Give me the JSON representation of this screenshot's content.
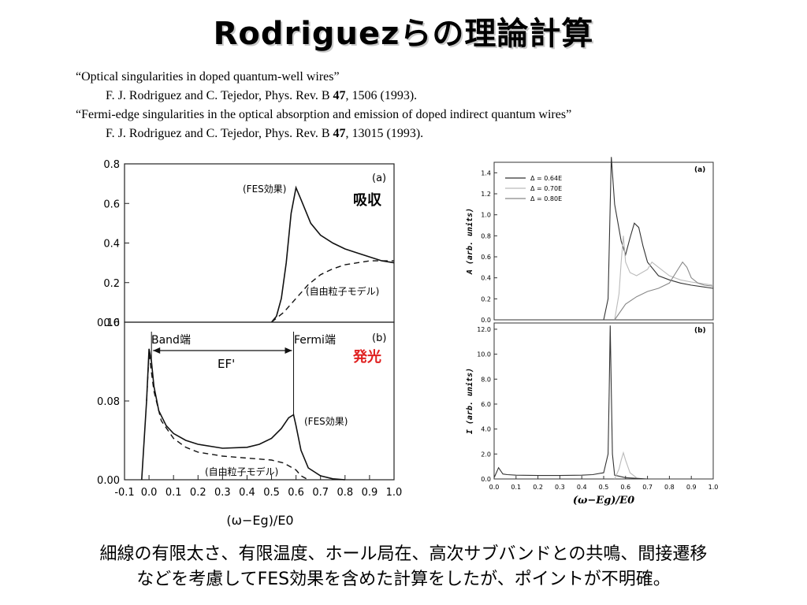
{
  "slide": {
    "title": "Rodriguezらの理論計算",
    "references": [
      {
        "title": "“Optical singularities in doped quantum-well wires”",
        "authors": "F. J. Rodriguez and C. Tejedor, Phys. Rev. B ",
        "volume": "47",
        "pages": ", 1506 (1993)."
      },
      {
        "title": "“Fermi-edge singularities in the optical absorption and emission of doped indirect quantum wires”",
        "authors": "F. J. Rodriguez and C. Tejedor, Phys. Rev. B ",
        "volume": "47",
        "pages": ", 13015 (1993)."
      }
    ],
    "caption": {
      "line1": "細線の有限太さ、有限温度、ホール局在、高次サブバンドとの共鳴、間接遷移",
      "line2": "などを考慮してFES効果を含めた計算をしたが、ポイントが不明確。"
    }
  },
  "chart_data": [
    {
      "type": "line",
      "panel": "(a)",
      "annotations": [
        "(FES効果)",
        "吸収",
        "(自由粒子モデル)"
      ],
      "ylim": [
        0.0,
        0.8
      ],
      "yticks": [
        "0.0",
        "0.2",
        "0.4",
        "0.6",
        "0.8"
      ],
      "xlim": [
        -0.1,
        1.0
      ],
      "series": [
        {
          "style": "solid",
          "x": [
            0.5,
            0.52,
            0.54,
            0.56,
            0.58,
            0.6,
            0.62,
            0.66,
            0.7,
            0.75,
            0.8,
            0.85,
            0.9,
            0.95,
            1.0
          ],
          "y": [
            0.0,
            0.03,
            0.12,
            0.3,
            0.55,
            0.68,
            0.62,
            0.5,
            0.44,
            0.4,
            0.37,
            0.35,
            0.33,
            0.31,
            0.3
          ]
        },
        {
          "style": "dashed",
          "x": [
            0.5,
            0.55,
            0.6,
            0.65,
            0.7,
            0.75,
            0.8,
            0.85,
            0.9,
            0.95,
            1.0
          ],
          "y": [
            0.0,
            0.05,
            0.12,
            0.19,
            0.24,
            0.27,
            0.29,
            0.3,
            0.31,
            0.31,
            0.31
          ]
        }
      ]
    },
    {
      "type": "line",
      "panel": "(b)",
      "annotations": [
        "Band端",
        "Fermi端",
        "EF'",
        "発光",
        "(FES効果)",
        "(自由粒子モデル)"
      ],
      "ylim": [
        0.0,
        0.16
      ],
      "yticks": [
        "0.00",
        "0.08",
        "0.16"
      ],
      "xlim": [
        -0.1,
        1.0
      ],
      "xticks": [
        "-0.1",
        "0.0",
        "0.1",
        "0.2",
        "0.3",
        "0.4",
        "0.5",
        "0.6",
        "0.7",
        "0.8",
        "0.9",
        "1.0"
      ],
      "xlabel": "(ω−Eg)/E0",
      "series": [
        {
          "style": "solid",
          "x": [
            -0.03,
            -0.01,
            0.0,
            0.01,
            0.02,
            0.04,
            0.07,
            0.1,
            0.15,
            0.2,
            0.3,
            0.4,
            0.45,
            0.5,
            0.54,
            0.57,
            0.59,
            0.6,
            0.62,
            0.65,
            0.7,
            0.75,
            0.8
          ],
          "y": [
            0.0,
            0.08,
            0.133,
            0.12,
            0.095,
            0.07,
            0.055,
            0.047,
            0.04,
            0.036,
            0.032,
            0.033,
            0.036,
            0.042,
            0.052,
            0.063,
            0.066,
            0.055,
            0.03,
            0.012,
            0.004,
            0.001,
            0.0
          ]
        },
        {
          "style": "dashed",
          "x": [
            -0.01,
            0.0,
            0.02,
            0.05,
            0.1,
            0.15,
            0.2,
            0.3,
            0.4,
            0.5,
            0.55,
            0.6,
            0.62,
            0.65
          ],
          "y": [
            0.08,
            0.128,
            0.09,
            0.06,
            0.042,
            0.033,
            0.028,
            0.024,
            0.022,
            0.02,
            0.017,
            0.01,
            0.004,
            0.0
          ]
        }
      ]
    },
    {
      "type": "line",
      "panel": "(a)",
      "ylabel": "A (arb. units)",
      "ylim": [
        0.0,
        1.5
      ],
      "yticks": [
        "0.0",
        "0.2",
        "0.4",
        "0.6",
        "0.8",
        "1.0",
        "1.2",
        "1.4"
      ],
      "xlim": [
        0.0,
        1.0
      ],
      "series": [
        {
          "name": "Δ = 0.64E",
          "x": [
            0.5,
            0.52,
            0.53,
            0.535,
            0.55,
            0.58,
            0.6,
            0.62,
            0.64,
            0.66,
            0.68,
            0.7,
            0.75,
            0.8,
            0.85,
            0.9,
            1.0
          ],
          "y": [
            0.0,
            0.2,
            1.1,
            1.55,
            1.1,
            0.75,
            0.62,
            0.78,
            0.92,
            0.88,
            0.7,
            0.55,
            0.42,
            0.38,
            0.35,
            0.33,
            0.3
          ]
        },
        {
          "name": "Δ = 0.70E",
          "x": [
            0.55,
            0.57,
            0.58,
            0.59,
            0.6,
            0.62,
            0.65,
            0.7,
            0.72,
            0.75,
            0.8,
            0.85,
            0.9,
            1.0
          ],
          "y": [
            0.0,
            0.25,
            0.55,
            0.8,
            0.55,
            0.45,
            0.42,
            0.48,
            0.55,
            0.5,
            0.42,
            0.38,
            0.36,
            0.33
          ]
        },
        {
          "name": "Δ = 0.80E",
          "x": [
            0.55,
            0.6,
            0.65,
            0.7,
            0.75,
            0.8,
            0.83,
            0.86,
            0.88,
            0.9,
            0.93,
            0.96,
            1.0
          ],
          "y": [
            0.0,
            0.15,
            0.22,
            0.27,
            0.3,
            0.35,
            0.45,
            0.55,
            0.5,
            0.4,
            0.35,
            0.33,
            0.32
          ]
        }
      ],
      "legend_position": "top-left"
    },
    {
      "type": "line",
      "panel": "(b)",
      "ylabel": "I (arb. units)",
      "xlabel": "(ω−Eg)/E0",
      "ylim": [
        0.0,
        12.5
      ],
      "yticks": [
        "0.0",
        "2.0",
        "4.0",
        "6.0",
        "8.0",
        "10.0",
        "12.0"
      ],
      "xlim": [
        0.0,
        1.0
      ],
      "xticks": [
        "0.0",
        "0.1",
        "0.2",
        "0.3",
        "0.4",
        "0.5",
        "0.6",
        "0.7",
        "0.8",
        "0.9",
        "1.0"
      ],
      "series": [
        {
          "x": [
            0.0,
            0.01,
            0.02,
            0.04,
            0.06,
            0.1,
            0.2,
            0.3,
            0.4,
            0.45,
            0.5,
            0.52,
            0.525,
            0.53,
            0.535,
            0.54,
            0.55,
            0.6,
            0.65,
            0.7
          ],
          "y": [
            0.1,
            0.5,
            0.9,
            0.4,
            0.35,
            0.3,
            0.28,
            0.28,
            0.3,
            0.35,
            0.5,
            2.0,
            7.0,
            12.3,
            7.0,
            2.0,
            0.3,
            0.1,
            0.05,
            0.0
          ]
        },
        {
          "x": [
            0.55,
            0.57,
            0.58,
            0.59,
            0.6,
            0.62,
            0.65
          ],
          "y": [
            0.0,
            0.8,
            1.5,
            2.1,
            1.5,
            0.5,
            0.1
          ]
        }
      ]
    }
  ]
}
